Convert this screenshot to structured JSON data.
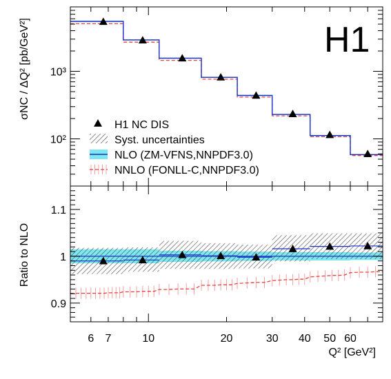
{
  "chart_data": [
    {
      "panel": "top",
      "type": "line",
      "title": "",
      "logo": "H1",
      "xlabel": "Q² [GeV²]",
      "ylabel": "σNC / ΔQ² [pb/GeV²]",
      "xscale": "log",
      "yscale": "log",
      "xlim": [
        5.0,
        80.0
      ],
      "ylim": [
        20,
        9000
      ],
      "y_ticks": [
        {
          "value": 100,
          "label": "10²"
        },
        {
          "value": 1000,
          "label": "10³"
        }
      ],
      "bin_edges": [
        5.0,
        8.0,
        11.0,
        16.0,
        22.0,
        30.0,
        42.0,
        60.0,
        80.0
      ],
      "series": [
        {
          "name": "H1 NC DIS",
          "kind": "markers",
          "x": [
            6.7,
            9.5,
            13.5,
            19.0,
            26.0,
            36.0,
            50.0,
            70.0
          ],
          "values": [
            5450,
            2900,
            1570,
            820,
            440,
            235,
            115,
            60
          ]
        },
        {
          "name": "NLO (ZM-VFNS,NNPDF3.0)",
          "kind": "step",
          "values": [
            5500,
            2920,
            1565,
            815,
            440,
            230,
            112,
            58.5
          ]
        },
        {
          "name": "NNLO (FONLL-C,NNPDF3.0)",
          "kind": "step-dashed",
          "values": [
            5070,
            2700,
            1455,
            765,
            415,
            219,
            107.5,
            56.7
          ]
        }
      ],
      "legend": {
        "placement": "lower-left",
        "entries": [
          {
            "label": "H1 NC DIS",
            "style": "marker"
          },
          {
            "label": "Syst. uncertainties",
            "style": "hatch"
          },
          {
            "label": "NLO (ZM-VFNS,NNPDF3.0)",
            "style": "band"
          },
          {
            "label": "NNLO (FONLL-C,NNPDF3.0)",
            "style": "dashed"
          }
        ]
      }
    },
    {
      "panel": "bottom",
      "type": "line",
      "title": "",
      "xlabel": "Q² [GeV²]",
      "ylabel": "Ratio to NLO",
      "xscale": "log",
      "xlim": [
        5.0,
        80.0
      ],
      "ylim": [
        0.86,
        1.15
      ],
      "y_ticks": [
        {
          "value": 0.9,
          "label": "0.9"
        },
        {
          "value": 1.0,
          "label": "1"
        },
        {
          "value": 1.1,
          "label": "1.1"
        }
      ],
      "x_ticks": [
        {
          "value": 6,
          "label": "6"
        },
        {
          "value": 7,
          "label": "7"
        },
        {
          "value": 10,
          "label": "10"
        },
        {
          "value": 20,
          "label": "20"
        },
        {
          "value": 30,
          "label": "30"
        },
        {
          "value": 40,
          "label": "40"
        },
        {
          "value": 50,
          "label": "50"
        },
        {
          "value": 60,
          "label": "60"
        }
      ],
      "bin_edges": [
        5.0,
        8.0,
        11.0,
        16.0,
        22.0,
        30.0,
        42.0,
        60.0,
        80.0
      ],
      "series": [
        {
          "name": "H1 NC DIS",
          "kind": "markers",
          "x": [
            6.7,
            9.5,
            13.5,
            19.0,
            26.0,
            36.0,
            50.0,
            70.0
          ],
          "values": [
            0.99,
            0.992,
            1.003,
            1.001,
            0.998,
            1.016,
            1.021,
            1.022
          ]
        },
        {
          "name": "Syst. uncertainties",
          "kind": "hatch-band",
          "low": [
            0.962,
            0.967,
            0.973,
            0.973,
            0.974,
            0.989,
            0.994,
            0.994
          ],
          "high": [
            1.018,
            1.019,
            1.033,
            1.028,
            1.025,
            1.045,
            1.049,
            1.049
          ]
        },
        {
          "name": "NLO (ZM-VFNS,NNPDF3.0)",
          "kind": "band",
          "values": [
            1.0,
            1.0,
            1.0,
            1.0,
            1.0,
            1.0,
            1.0,
            1.0
          ],
          "low": [
            0.985,
            0.985,
            0.988,
            0.989,
            0.99,
            0.991,
            0.991,
            0.992
          ],
          "high": [
            1.015,
            1.015,
            1.012,
            1.011,
            1.01,
            1.009,
            1.009,
            1.008
          ]
        },
        {
          "name": "NNLO (FONLL-C,NNPDF3.0)",
          "kind": "dashed-points",
          "x": [
            5.0,
            5.25,
            5.5,
            5.75,
            6.0,
            6.25,
            6.5,
            6.75,
            7.0,
            7.25,
            7.5,
            7.75,
            8.0,
            8.5,
            9.0,
            9.5,
            10.0,
            10.5,
            11.0,
            12.0,
            13.0,
            14.0,
            15.0,
            16.0,
            17.0,
            18.0,
            19.0,
            20.0,
            21.0,
            22.0,
            24.0,
            26.0,
            28.0,
            30.0,
            32.0,
            34.0,
            36.0,
            38.0,
            40.0,
            42.0,
            45.0,
            48.0,
            51.0,
            54.0,
            57.0,
            60.0,
            65.0,
            70.0,
            75.0,
            80.0
          ],
          "values": [
            0.921,
            0.921,
            0.921,
            0.921,
            0.921,
            0.921,
            0.921,
            0.921,
            0.922,
            0.922,
            0.922,
            0.922,
            0.924,
            0.924,
            0.924,
            0.925,
            0.925,
            0.925,
            0.929,
            0.929,
            0.93,
            0.93,
            0.93,
            0.938,
            0.938,
            0.938,
            0.939,
            0.939,
            0.939,
            0.942,
            0.943,
            0.944,
            0.944,
            0.948,
            0.949,
            0.95,
            0.95,
            0.951,
            0.951,
            0.956,
            0.957,
            0.958,
            0.959,
            0.959,
            0.96,
            0.965,
            0.966,
            0.966,
            0.967,
            0.967
          ],
          "err": 0.012
        }
      ]
    }
  ]
}
